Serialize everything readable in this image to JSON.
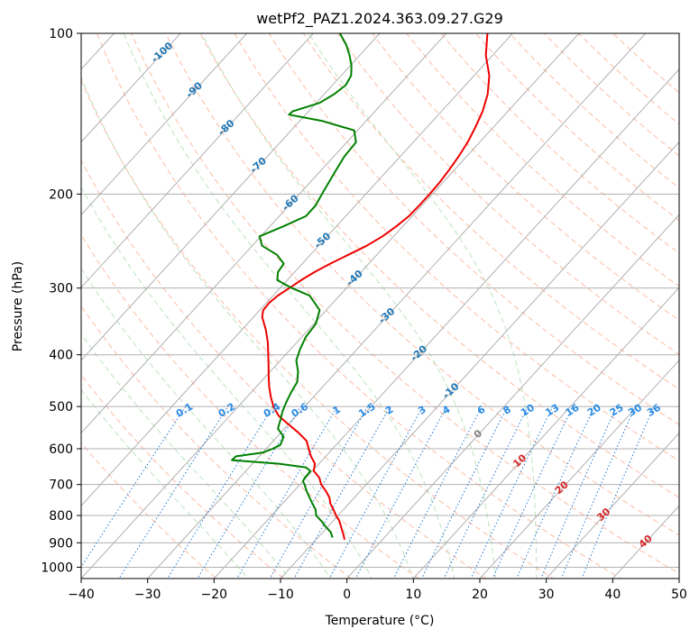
{
  "chart_data": {
    "type": "line",
    "title": "wetPf2_PAZ1.2024.363.09.27.G29",
    "xlabel": "Temperature (°C)",
    "ylabel": "Pressure (hPa)",
    "xlim": [
      -40,
      50
    ],
    "ylim": [
      1050,
      100
    ],
    "y_scale": "log",
    "skew": true,
    "grid": true,
    "x_ticks": [
      -40,
      -30,
      -20,
      -10,
      0,
      10,
      20,
      30,
      40,
      50
    ],
    "x_tick_labels": [
      "−40",
      "−30",
      "−20",
      "−10",
      "0",
      "10",
      "20",
      "30",
      "40",
      "50"
    ],
    "y_ticks": [
      1000,
      900,
      800,
      700,
      600,
      500,
      400,
      300,
      200,
      100
    ],
    "y_tick_labels": [
      "1000",
      "900",
      "800",
      "700",
      "600",
      "500",
      "400",
      "300",
      "200",
      "100"
    ],
    "series": [
      {
        "color": "#ee0000",
        "points": [
          [
            888,
            -5.7
          ],
          [
            870,
            -6.5
          ],
          [
            850,
            -7.5
          ],
          [
            820,
            -9.0
          ],
          [
            800,
            -10.3
          ],
          [
            780,
            -11.5
          ],
          [
            760,
            -12.8
          ],
          [
            740,
            -13.8
          ],
          [
            720,
            -15.2
          ],
          [
            700,
            -16.8
          ],
          [
            680,
            -18.0
          ],
          [
            660,
            -19.8
          ],
          [
            640,
            -20.6
          ],
          [
            620,
            -22.2
          ],
          [
            600,
            -23.6
          ],
          [
            580,
            -25.0
          ],
          [
            560,
            -27.3
          ],
          [
            540,
            -30.0
          ],
          [
            520,
            -32.7
          ],
          [
            500,
            -34.7
          ],
          [
            480,
            -36.4
          ],
          [
            460,
            -38.0
          ],
          [
            440,
            -39.5
          ],
          [
            420,
            -41.0
          ],
          [
            400,
            -42.6
          ],
          [
            380,
            -44.3
          ],
          [
            360,
            -46.3
          ],
          [
            340,
            -48.7
          ],
          [
            330,
            -49.5
          ],
          [
            320,
            -49.6
          ],
          [
            310,
            -49.3
          ],
          [
            300,
            -48.6
          ],
          [
            290,
            -47.9
          ],
          [
            280,
            -47.0
          ],
          [
            270,
            -45.8
          ],
          [
            260,
            -44.3
          ],
          [
            250,
            -42.8
          ],
          [
            240,
            -41.7
          ],
          [
            230,
            -41.0
          ],
          [
            220,
            -40.5
          ],
          [
            210,
            -40.4
          ],
          [
            200,
            -40.4
          ],
          [
            190,
            -40.5
          ],
          [
            180,
            -40.8
          ],
          [
            170,
            -41.2
          ],
          [
            160,
            -41.8
          ],
          [
            150,
            -42.7
          ],
          [
            140,
            -43.8
          ],
          [
            130,
            -45.4
          ],
          [
            120,
            -47.7
          ],
          [
            110,
            -51.0
          ],
          [
            100,
            -53.8
          ]
        ]
      },
      {
        "color": "#008000",
        "points": [
          [
            880,
            -7.8
          ],
          [
            860,
            -8.8
          ],
          [
            840,
            -10.3
          ],
          [
            820,
            -11.7
          ],
          [
            800,
            -13.3
          ],
          [
            780,
            -14.2
          ],
          [
            760,
            -15.5
          ],
          [
            740,
            -16.8
          ],
          [
            720,
            -18.1
          ],
          [
            700,
            -19.3
          ],
          [
            690,
            -20.0
          ],
          [
            680,
            -20.2
          ],
          [
            670,
            -20.2
          ],
          [
            660,
            -20.3
          ],
          [
            650,
            -21.5
          ],
          [
            640,
            -26.0
          ],
          [
            630,
            -33.6
          ],
          [
            620,
            -33.5
          ],
          [
            610,
            -30.0
          ],
          [
            600,
            -29.0
          ],
          [
            590,
            -28.4
          ],
          [
            570,
            -29.0
          ],
          [
            550,
            -31.0
          ],
          [
            530,
            -31.8
          ],
          [
            510,
            -32.7
          ],
          [
            490,
            -33.4
          ],
          [
            470,
            -34.0
          ],
          [
            450,
            -34.5
          ],
          [
            430,
            -35.8
          ],
          [
            410,
            -37.6
          ],
          [
            390,
            -38.6
          ],
          [
            370,
            -39.4
          ],
          [
            350,
            -39.7
          ],
          [
            330,
            -41.0
          ],
          [
            310,
            -44.5
          ],
          [
            300,
            -48.2
          ],
          [
            290,
            -51.5
          ],
          [
            280,
            -52.5
          ],
          [
            270,
            -52.8
          ],
          [
            260,
            -55.0
          ],
          [
            250,
            -58.5
          ],
          [
            240,
            -60.2
          ],
          [
            230,
            -58.0
          ],
          [
            220,
            -56.0
          ],
          [
            210,
            -56.0
          ],
          [
            200,
            -56.6
          ],
          [
            190,
            -57.2
          ],
          [
            180,
            -57.8
          ],
          [
            170,
            -58.4
          ],
          [
            160,
            -58.6
          ],
          [
            152,
            -60.5
          ],
          [
            146,
            -66.5
          ],
          [
            142,
            -72.5
          ],
          [
            140,
            -72.4
          ],
          [
            135,
            -69.5
          ],
          [
            130,
            -68.5
          ],
          [
            125,
            -68.0
          ],
          [
            120,
            -68.5
          ],
          [
            115,
            -69.8
          ],
          [
            110,
            -71.5
          ],
          [
            105,
            -73.5
          ],
          [
            100,
            -76.0
          ]
        ]
      }
    ],
    "mixing_ratio_labels": [
      "0.1",
      "0.2",
      "0.4",
      "0.6",
      "1",
      "1.5",
      "2",
      "3",
      "4",
      "6",
      "8",
      "10",
      "13",
      "16",
      "20",
      "25",
      "30",
      "36"
    ],
    "isotherm_labels": [
      "-100",
      "-90",
      "-80",
      "-70",
      "-60",
      "-50",
      "-40",
      "-30",
      "-20",
      "-10",
      "0",
      "10",
      "20",
      "30",
      "40"
    ],
    "colors": {
      "temperature": "#ee0000",
      "dewpoint": "#008000",
      "dry_adiabat": "#fdbba4",
      "moist_adiabat": "#bde3bd",
      "mixing_ratio": "#1f77d4",
      "isotherm_grid": "#b0b0b0",
      "cold_isotherm_label": "#1f77b4",
      "zero_isotherm_label": "#808080",
      "warm_isotherm_label": "#d62728",
      "mixing_ratio_label": "#2b8ce6"
    }
  }
}
